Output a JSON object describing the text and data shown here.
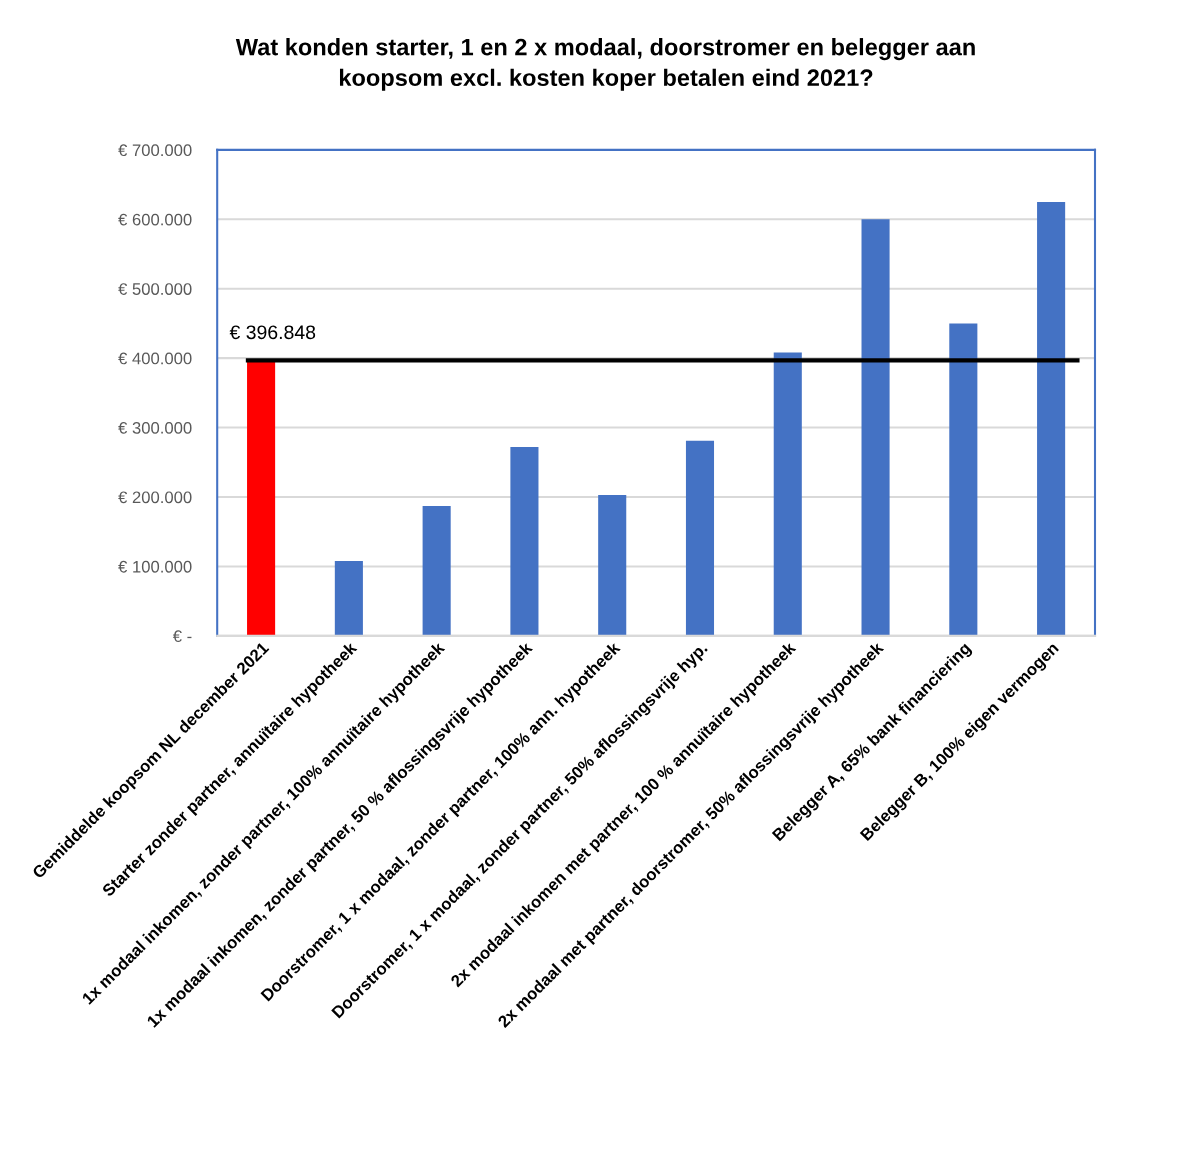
{
  "chart_data": {
    "type": "bar",
    "title": "Wat konden starter, 1 en 2 x modaal, doorstromer en belegger aan\nkoopsom excl. kosten koper betalen eind 2021?",
    "categories": [
      "Gemiddelde koopsom NL december 2021",
      "Starter zonder partner, annuïtaire hypotheek",
      "1x modaal inkomen, zonder partner, 100% annuïtaire hypotheek",
      "1x modaal inkomen, zonder partner, 50 % aflossingsvrije hypotheek",
      "Doorstromer, 1 x modaal, zonder partner, 100% ann. hypotheek",
      "Doorstromer, 1 x modaal, zonder partner, 50% aflossingsvrije hyp.",
      "2x modaal inkomen met partner, 100 % annuïtaire hypotheek",
      "2x modaal met partner, doorstromer, 50% aflossingsvrije hypotheek",
      "Belegger A, 65% bank financiering",
      "Belegger B, 100% eigen vermogen"
    ],
    "values": [
      397000,
      108000,
      187000,
      272000,
      203000,
      281000,
      408000,
      600000,
      450000,
      625000
    ],
    "colors": [
      "#ff0000",
      "#4472c4",
      "#4472c4",
      "#4472c4",
      "#4472c4",
      "#4472c4",
      "#4472c4",
      "#4472c4",
      "#4472c4",
      "#4472c4"
    ],
    "ylim": [
      0,
      700000
    ],
    "yticks": [
      {
        "value": 0,
        "label": "€ -"
      },
      {
        "value": 100000,
        "label": "€ 100.000"
      },
      {
        "value": 200000,
        "label": "€ 200.000"
      },
      {
        "value": 300000,
        "label": "€ 300.000"
      },
      {
        "value": 400000,
        "label": "€ 400.000"
      },
      {
        "value": 500000,
        "label": "€ 500.000"
      },
      {
        "value": 600000,
        "label": "€ 600.000"
      },
      {
        "value": 700000,
        "label": "€ 700.000"
      }
    ],
    "ref_lines": [
      {
        "axis": "y",
        "value": 396848,
        "label": "€ 396.848",
        "color": "#000000",
        "line_style": "solid"
      }
    ],
    "grid": "y"
  }
}
